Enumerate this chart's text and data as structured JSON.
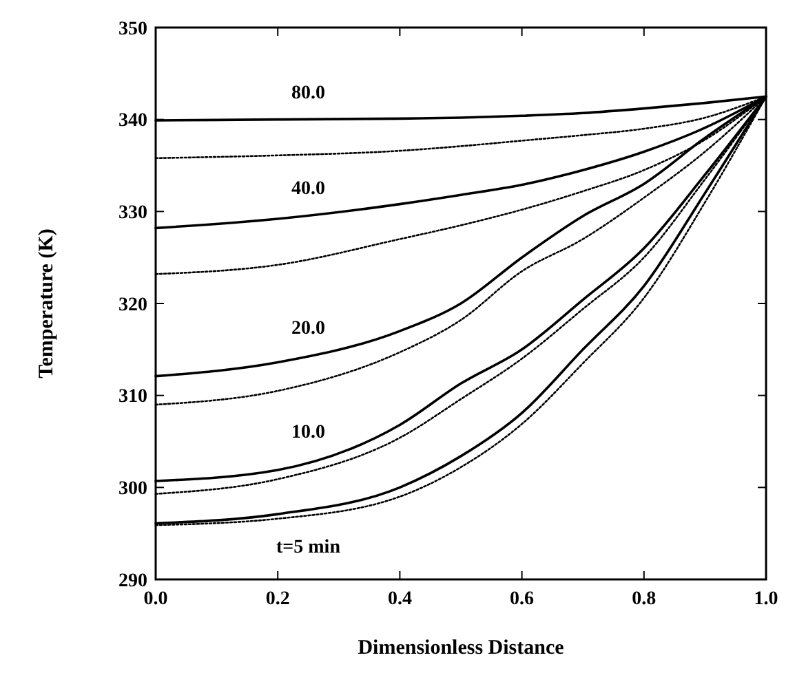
{
  "chart_data": {
    "type": "line",
    "xlabel": "Dimensionless Distance",
    "ylabel": "Temperature (K)",
    "xlim": [
      0,
      1
    ],
    "ylim": [
      290,
      350
    ],
    "xticks": [
      {
        "value": 0,
        "label": "0.0"
      },
      {
        "value": 0.2,
        "label": "0.2"
      },
      {
        "value": 0.4,
        "label": "0.4"
      },
      {
        "value": 0.6,
        "label": "0.6"
      },
      {
        "value": 0.8,
        "label": "0.8"
      },
      {
        "value": 1,
        "label": "1.0"
      }
    ],
    "yticks": [
      290,
      300,
      310,
      320,
      330,
      340,
      350
    ],
    "x": [
      0,
      0.2,
      0.4,
      0.5,
      0.6,
      0.7,
      0.8,
      0.9,
      1
    ],
    "series": [
      {
        "name": "80.0",
        "color": "#000000",
        "line_style": "solid",
        "values": [
          339.9,
          340,
          340.1,
          340.2,
          340.4,
          340.7,
          341.2,
          341.8,
          342.5
        ]
      },
      {
        "color": "#000000",
        "line_style": "dotted",
        "values": [
          335.8,
          336.1,
          336.6,
          337.1,
          337.7,
          338.3,
          339,
          340.2,
          342.5
        ]
      },
      {
        "name": "40.0",
        "color": "#000000",
        "line_style": "solid",
        "values": [
          328.2,
          329.2,
          330.8,
          331.8,
          332.9,
          334.5,
          336.5,
          339.1,
          342.5
        ]
      },
      {
        "color": "#000000",
        "line_style": "dotted",
        "values": [
          323.2,
          324.2,
          327,
          328.5,
          330.2,
          332.2,
          334.5,
          337.8,
          342.5
        ]
      },
      {
        "name": "20.0",
        "color": "#000000",
        "line_style": "solid",
        "values": [
          312.1,
          313.6,
          317,
          320,
          325,
          329.5,
          333,
          338,
          342.5
        ]
      },
      {
        "color": "#000000",
        "line_style": "dotted",
        "values": [
          309,
          310.5,
          314.7,
          318.2,
          323.5,
          327,
          331.5,
          336.5,
          342.5
        ]
      },
      {
        "name": "10.0",
        "color": "#000000",
        "line_style": "solid",
        "values": [
          300.7,
          301.9,
          306.8,
          311.3,
          315,
          320.4,
          326,
          334,
          342.5
        ]
      },
      {
        "color": "#000000",
        "line_style": "dotted",
        "values": [
          299.3,
          300.9,
          305.4,
          309.6,
          314,
          319.4,
          325,
          333.5,
          342.5
        ]
      },
      {
        "name": "t=5 min",
        "color": "#000000",
        "line_style": "solid",
        "values": [
          296.1,
          297.1,
          300,
          303.4,
          308.1,
          315,
          321.9,
          332,
          342.5
        ]
      },
      {
        "color": "#000000",
        "line_style": "dotted",
        "values": [
          295.9,
          296.6,
          299,
          302.2,
          306.9,
          313.5,
          320.6,
          331,
          342.5
        ]
      }
    ],
    "marker": "none",
    "grid": false
  }
}
